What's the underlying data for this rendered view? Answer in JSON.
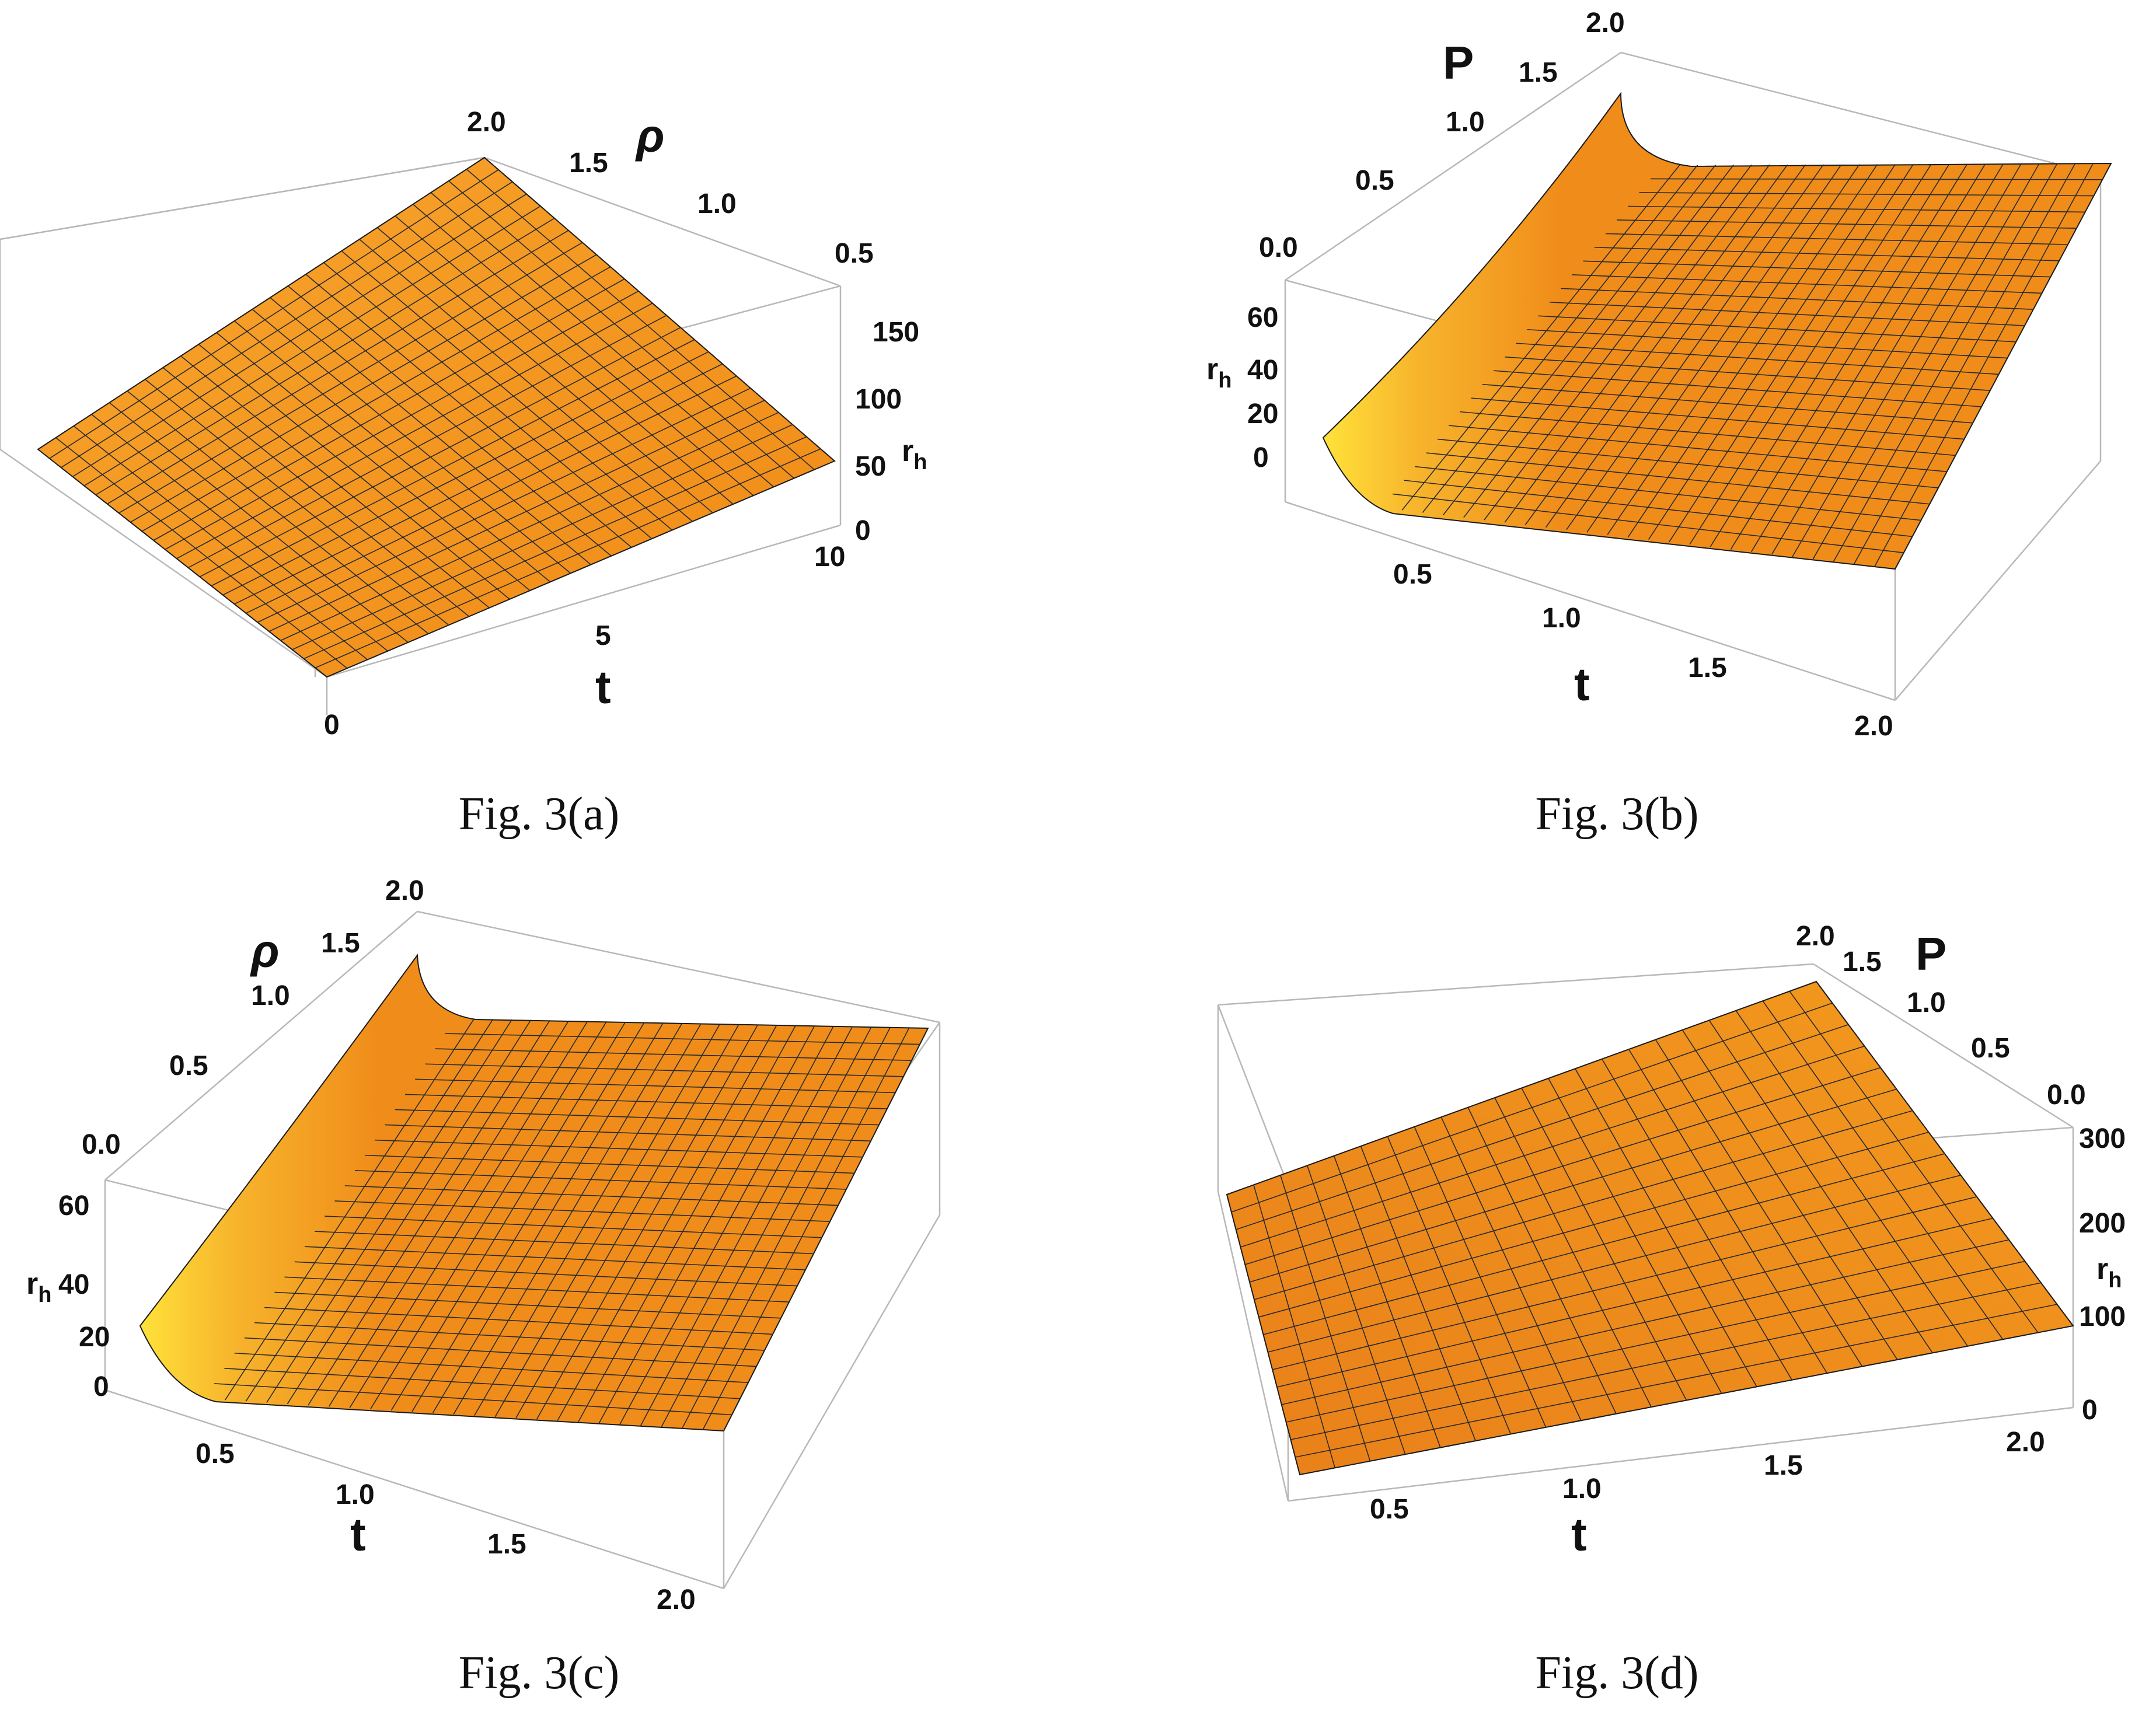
{
  "chart_data": [
    {
      "type": "surface",
      "caption": "Fig. 3(a)",
      "axes": {
        "x": {
          "label": "t",
          "ticks": [
            "0",
            "5",
            "10"
          ],
          "range": [
            0,
            10
          ]
        },
        "y": {
          "label": "ρ",
          "ticks": [
            "0.5",
            "1.0",
            "1.5",
            "2.0"
          ],
          "range": [
            0,
            2
          ]
        },
        "z": {
          "label_main": "r",
          "label_sub": "h",
          "ticks": [
            "0",
            "50",
            "100",
            "150"
          ],
          "range": [
            0,
            175
          ]
        }
      },
      "surface": "planar, rising with t and ρ from 0 to about 175",
      "color": "#f39a1e"
    },
    {
      "type": "surface",
      "caption": "Fig. 3(b)",
      "axes": {
        "x": {
          "label": "t",
          "ticks": [
            "0.5",
            "1.0",
            "1.5",
            "2.0"
          ],
          "range": [
            0,
            2
          ]
        },
        "y": {
          "label": "P",
          "ticks": [
            "0.0",
            "0.5",
            "1.0",
            "1.5",
            "2.0"
          ],
          "range": [
            0,
            2
          ]
        },
        "z": {
          "label_main": "r",
          "label_sub": "h",
          "ticks": [
            "0",
            "20",
            "40",
            "60"
          ],
          "range": [
            -10,
            70
          ]
        }
      },
      "surface": "sharp rise as t approaches 0, nearly flat elsewhere",
      "color": "#f39a1e"
    },
    {
      "type": "surface",
      "caption": "Fig. 3(c)",
      "axes": {
        "x": {
          "label": "t",
          "ticks": [
            "0.5",
            "1.0",
            "1.5",
            "2.0"
          ],
          "range": [
            0,
            2
          ]
        },
        "y": {
          "label": "ρ",
          "ticks": [
            "0.0",
            "0.5",
            "1.0",
            "1.5",
            "2.0"
          ],
          "range": [
            0,
            2
          ]
        },
        "z": {
          "label_main": "r",
          "label_sub": "h",
          "ticks": [
            "0",
            "20",
            "40",
            "60"
          ],
          "range": [
            -10,
            70
          ]
        }
      },
      "surface": "sharp rise as t approaches 0, nearly flat elsewhere",
      "color": "#f39a1e"
    },
    {
      "type": "surface",
      "caption": "Fig. 3(d)",
      "axes": {
        "x": {
          "label": "t",
          "ticks": [
            "0.5",
            "1.0",
            "1.5",
            "2.0"
          ],
          "range": [
            0,
            2
          ]
        },
        "y": {
          "label": "P",
          "ticks": [
            "0.0",
            "0.5",
            "1.0",
            "1.5",
            "2.0"
          ],
          "range": [
            0,
            2
          ]
        },
        "z": {
          "label_main": "r",
          "label_sub": "h",
          "ticks": [
            "0",
            "100",
            "200",
            "300"
          ],
          "range": [
            0,
            320
          ]
        }
      },
      "surface": "planar, increasing with P and t",
      "color": "#f39a1e"
    }
  ]
}
